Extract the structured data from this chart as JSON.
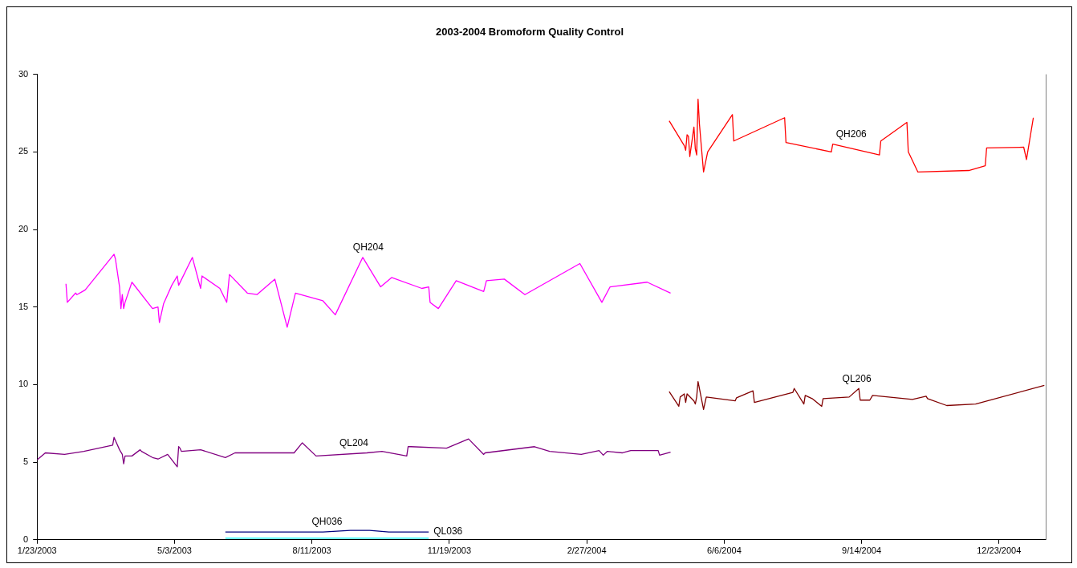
{
  "chart_data": {
    "type": "line",
    "title": "2003-2004 Bromoform Quality Control",
    "xlim": [
      "2003-01-23",
      "2005-01-26"
    ],
    "xticks": [
      {
        "value": "2003-01-23",
        "label": "1/23/2003"
      },
      {
        "value": "2003-05-03",
        "label": "5/3/2003"
      },
      {
        "value": "2003-08-11",
        "label": "8/11/2003"
      },
      {
        "value": "2003-11-19",
        "label": "11/19/2003"
      },
      {
        "value": "2004-02-27",
        "label": "2/27/2004"
      },
      {
        "value": "2004-06-06",
        "label": "6/6/2004"
      },
      {
        "value": "2004-09-14",
        "label": "9/14/2004"
      },
      {
        "value": "2004-12-23",
        "label": "12/23/2004"
      }
    ],
    "ylim": [
      0,
      30
    ],
    "yticks": [
      0,
      5,
      10,
      15,
      20,
      25,
      30
    ],
    "grid": false,
    "legend": false,
    "marker": "none",
    "line_style": "solid",
    "series": [
      {
        "name": "QH204",
        "color": "#ff00ff",
        "x": [
          "2003-02-13",
          "2003-02-14",
          "2003-02-20",
          "2003-02-21",
          "2003-02-25",
          "2003-02-27",
          "2003-03-20",
          "2003-03-21",
          "2003-03-24",
          "2003-03-25",
          "2003-03-26",
          "2003-03-27",
          "2003-03-28",
          "2003-04-02",
          "2003-04-17",
          "2003-04-21",
          "2003-04-22",
          "2003-04-25",
          "2003-05-01",
          "2003-05-05",
          "2003-05-06",
          "2003-05-16",
          "2003-05-22",
          "2003-05-23",
          "2003-06-05",
          "2003-06-10",
          "2003-06-12",
          "2003-06-25",
          "2003-07-02",
          "2003-07-15",
          "2003-07-24",
          "2003-07-30",
          "2003-08-19",
          "2003-08-28",
          "2003-09-17",
          "2003-09-30",
          "2003-10-08",
          "2003-10-30",
          "2003-11-04",
          "2003-11-05",
          "2003-11-11",
          "2003-11-24",
          "2003-12-14",
          "2003-12-16",
          "2003-12-29",
          "2004-01-13",
          "2004-02-22",
          "2004-03-09",
          "2004-03-15",
          "2004-04-11",
          "2004-04-28"
        ],
        "values": [
          16.5,
          15.3,
          15.9,
          15.8,
          16.0,
          16.1,
          18.4,
          18.1,
          16.3,
          14.9,
          15.8,
          14.9,
          15.3,
          16.6,
          14.9,
          15.0,
          14.0,
          15.2,
          16.4,
          17.0,
          16.4,
          18.2,
          16.2,
          17.0,
          16.2,
          15.3,
          17.1,
          15.9,
          15.8,
          16.8,
          13.7,
          15.9,
          15.4,
          14.5,
          18.2,
          16.3,
          16.9,
          16.2,
          16.3,
          15.3,
          14.9,
          16.7,
          16.0,
          16.7,
          16.8,
          15.8,
          17.8,
          15.3,
          16.3,
          16.6,
          15.9
        ]
      },
      {
        "name": "QL204",
        "color": "#800080",
        "x": [
          "2003-01-23",
          "2003-01-29",
          "2003-02-12",
          "2003-02-26",
          "2003-03-19",
          "2003-03-20",
          "2003-03-21",
          "2003-03-24",
          "2003-03-26",
          "2003-03-27",
          "2003-03-28",
          "2003-04-02",
          "2003-04-08",
          "2003-04-09",
          "2003-04-17",
          "2003-04-21",
          "2003-04-28",
          "2003-05-05",
          "2003-05-06",
          "2003-05-07",
          "2003-05-08",
          "2003-05-22",
          "2003-06-09",
          "2003-06-16",
          "2003-06-24",
          "2003-07-29",
          "2003-08-04",
          "2003-08-14",
          "2003-09-20",
          "2003-10-01",
          "2003-10-19",
          "2003-10-20",
          "2003-10-22",
          "2003-11-17",
          "2003-12-03",
          "2003-12-14",
          "2003-12-15",
          "2004-01-20",
          "2004-01-31",
          "2004-02-23",
          "2004-03-07",
          "2004-03-10",
          "2004-03-13",
          "2004-03-24",
          "2004-03-30",
          "2004-04-19",
          "2004-04-20",
          "2004-04-28"
        ],
        "values": [
          5.15,
          5.6,
          5.5,
          5.7,
          6.1,
          6.6,
          6.4,
          5.8,
          5.5,
          4.9,
          5.4,
          5.4,
          5.8,
          5.7,
          5.3,
          5.2,
          5.5,
          4.7,
          6.0,
          5.9,
          5.7,
          5.8,
          5.3,
          5.6,
          5.6,
          5.6,
          6.25,
          5.4,
          5.6,
          5.7,
          5.4,
          6.0,
          6.0,
          5.9,
          6.5,
          5.5,
          5.6,
          6.0,
          5.7,
          5.5,
          5.75,
          5.45,
          5.7,
          5.6,
          5.75,
          5.75,
          5.45,
          5.65
        ]
      },
      {
        "name": "QH206",
        "color": "#ff0000",
        "x": [
          "2004-04-27",
          "2004-05-08",
          "2004-05-09",
          "2004-05-10",
          "2004-05-11",
          "2004-05-12",
          "2004-05-15",
          "2004-05-16",
          "2004-05-17",
          "2004-05-18",
          "2004-05-19",
          "2004-05-22",
          "2004-05-25",
          "2004-06-12",
          "2004-06-13",
          "2004-07-20",
          "2004-07-21",
          "2004-08-23",
          "2004-08-24",
          "2004-09-27",
          "2004-09-28",
          "2004-10-17",
          "2004-10-18",
          "2004-10-25",
          "2004-12-01",
          "2004-12-13",
          "2004-12-14",
          "2005-01-10",
          "2005-01-12",
          "2005-01-17"
        ],
        "values": [
          27.0,
          25.4,
          25.1,
          26.1,
          26.0,
          24.7,
          26.6,
          25.2,
          24.8,
          28.4,
          26.8,
          23.7,
          25.0,
          27.4,
          25.7,
          27.2,
          25.6,
          25.0,
          25.5,
          24.8,
          25.7,
          26.9,
          25.0,
          23.7,
          23.8,
          24.1,
          25.25,
          25.3,
          24.5,
          27.2
        ]
      },
      {
        "name": "QL206",
        "color": "#800000",
        "x": [
          "2004-04-27",
          "2004-05-04",
          "2004-05-05",
          "2004-05-08",
          "2004-05-09",
          "2004-05-10",
          "2004-05-15",
          "2004-05-16",
          "2004-05-17",
          "2004-05-18",
          "2004-05-22",
          "2004-05-24",
          "2004-06-14",
          "2004-06-15",
          "2004-06-27",
          "2004-06-28",
          "2004-07-26",
          "2004-07-27",
          "2004-08-03",
          "2004-08-04",
          "2004-08-09",
          "2004-08-16",
          "2004-08-17",
          "2004-09-05",
          "2004-09-12",
          "2004-09-13",
          "2004-09-20",
          "2004-09-22",
          "2004-10-21",
          "2004-10-31",
          "2004-11-01",
          "2004-11-15",
          "2004-12-06",
          "2005-01-25"
        ],
        "values": [
          9.55,
          8.6,
          9.2,
          9.4,
          8.85,
          9.4,
          8.95,
          8.75,
          9.2,
          10.2,
          8.4,
          9.2,
          8.95,
          9.15,
          9.6,
          8.85,
          9.5,
          9.75,
          8.75,
          9.3,
          9.1,
          8.6,
          9.1,
          9.2,
          9.75,
          9.0,
          9.0,
          9.3,
          9.05,
          9.25,
          9.1,
          8.65,
          8.75,
          9.95
        ]
      },
      {
        "name": "QH036",
        "color": "#000080",
        "x": [
          "2003-06-09",
          "2003-08-19",
          "2003-09-08",
          "2003-09-22",
          "2003-10-06",
          "2003-11-04"
        ],
        "values": [
          0.5,
          0.5,
          0.6,
          0.6,
          0.5,
          0.5
        ]
      },
      {
        "name": "QL036",
        "color": "#00ffff",
        "x": [
          "2003-06-09",
          "2003-11-04"
        ],
        "values": [
          0.1,
          0.1
        ]
      }
    ]
  }
}
